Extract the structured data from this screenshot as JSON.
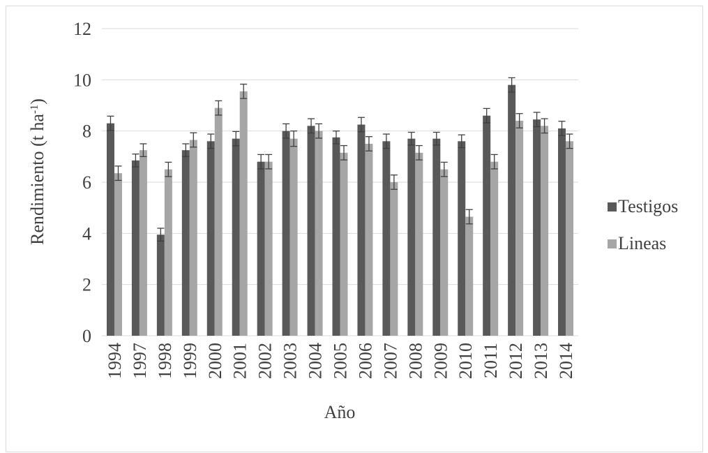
{
  "chart_data": {
    "type": "bar",
    "title": "",
    "xlabel": "Año",
    "ylabel_main": "Rendimiento (t ha",
    "ylabel_sup": "-1",
    "ylabel_close": ")",
    "ylim": [
      0,
      12
    ],
    "yticks": [
      "0",
      "2",
      "4",
      "6",
      "8",
      "10",
      "12"
    ],
    "grid": "horizontal",
    "legend_position": "right",
    "categories": [
      "1994",
      "1997",
      "1998",
      "1999",
      "2000",
      "2001",
      "2002",
      "2003",
      "2004",
      "2005",
      "2006",
      "2007",
      "2008",
      "2009",
      "2010",
      "2011",
      "2012",
      "2013",
      "2014"
    ],
    "series": [
      {
        "name": "Testigos",
        "color": "#595959",
        "values": [
          8.3,
          6.85,
          3.95,
          7.25,
          7.6,
          7.7,
          6.8,
          8.0,
          8.2,
          7.75,
          8.25,
          7.6,
          7.7,
          7.7,
          7.6,
          8.6,
          9.8,
          8.45,
          8.1
        ],
        "errors": [
          0.28,
          0.25,
          0.25,
          0.25,
          0.28,
          0.28,
          0.28,
          0.28,
          0.28,
          0.25,
          0.28,
          0.28,
          0.25,
          0.25,
          0.25,
          0.28,
          0.28,
          0.28,
          0.28
        ]
      },
      {
        "name": "Lineas",
        "color": "#a6a6a6",
        "values": [
          6.35,
          7.25,
          6.5,
          7.65,
          8.9,
          9.55,
          6.8,
          7.7,
          8.0,
          7.15,
          7.5,
          6.0,
          7.15,
          6.5,
          4.65,
          6.8,
          8.4,
          8.2,
          7.6
        ],
        "errors": [
          0.28,
          0.25,
          0.28,
          0.28,
          0.28,
          0.28,
          0.28,
          0.3,
          0.28,
          0.28,
          0.28,
          0.28,
          0.28,
          0.28,
          0.28,
          0.28,
          0.28,
          0.28,
          0.28
        ]
      }
    ],
    "error_bar_color": "#404040",
    "grid_color": "#d9d9d9"
  }
}
